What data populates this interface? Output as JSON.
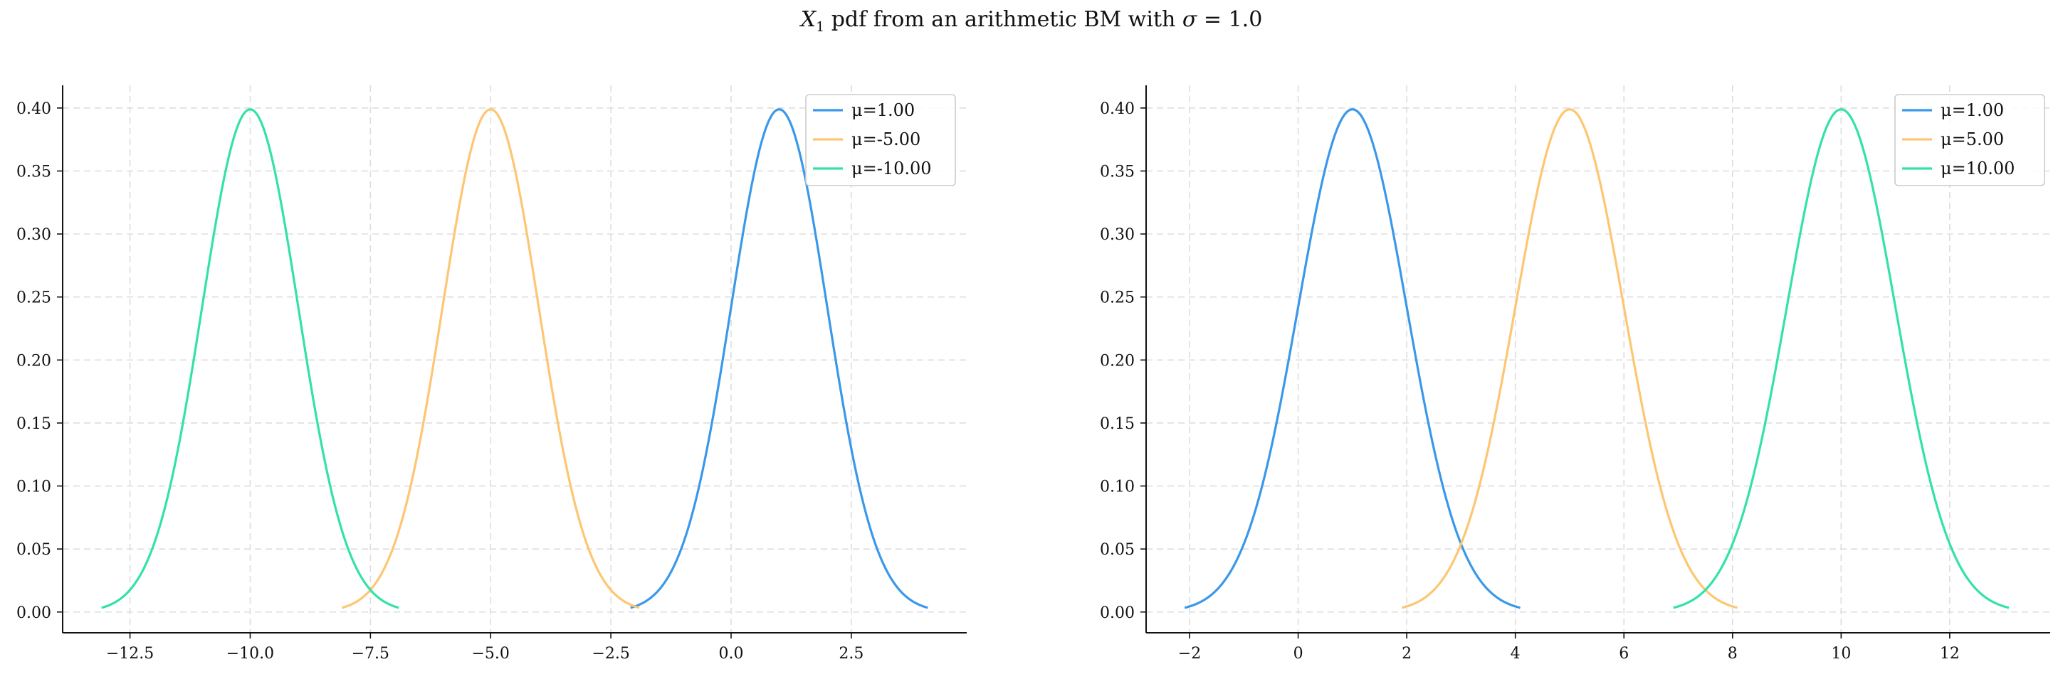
{
  "figure": {
    "title_pre": "X",
    "title_sub": "1",
    "title_mid": " pdf from an arithmetic BM with ",
    "title_sigma": "σ",
    "title_post": " = 1.0"
  },
  "colors": {
    "blue": "#3a98ea",
    "orange": "#fdc672",
    "teal": "#33e2a6",
    "grid": "#dddddd",
    "axis": "#111111"
  },
  "chart_data": [
    {
      "type": "line",
      "title": "",
      "xlabel": "",
      "ylabel": "",
      "xlim": [
        -13.9,
        4.9
      ],
      "ylim": [
        -0.0165,
        0.418
      ],
      "xticks": [
        -12.5,
        -10.0,
        -7.5,
        -5.0,
        -2.5,
        0.0,
        2.5
      ],
      "xtick_labels": [
        "−12.5",
        "−10.0",
        "−7.5",
        "−5.0",
        "−2.5",
        "0.0",
        "2.5"
      ],
      "yticks": [
        0.0,
        0.05,
        0.1,
        0.15,
        0.2,
        0.25,
        0.3,
        0.35,
        0.4
      ],
      "ytick_labels": [
        "0.00",
        "0.05",
        "0.10",
        "0.15",
        "0.20",
        "0.25",
        "0.30",
        "0.35",
        "0.40"
      ],
      "grid": true,
      "legend_position": "top-right",
      "series": [
        {
          "name": "μ=1.00",
          "mu": 1.0,
          "sigma": 1.0,
          "x_range": [
            -2.09,
            4.09
          ],
          "color": "blue",
          "x": [
            -2.09,
            -1.5,
            -1.0,
            -0.5,
            0.0,
            0.5,
            1.0,
            1.5,
            2.0,
            2.5,
            3.0,
            3.5,
            4.09
          ],
          "y": [
            0.003,
            0.018,
            0.054,
            0.13,
            0.242,
            0.352,
            0.399,
            0.352,
            0.242,
            0.13,
            0.054,
            0.018,
            0.003
          ]
        },
        {
          "name": "μ=-5.00",
          "mu": -5.0,
          "sigma": 1.0,
          "x_range": [
            -8.09,
            -1.91
          ],
          "color": "orange",
          "x": [
            -8.09,
            -7.5,
            -7.0,
            -6.5,
            -6.0,
            -5.5,
            -5.0,
            -4.5,
            -4.0,
            -3.5,
            -3.0,
            -2.5,
            -1.91
          ],
          "y": [
            0.003,
            0.018,
            0.054,
            0.13,
            0.242,
            0.352,
            0.399,
            0.352,
            0.242,
            0.13,
            0.054,
            0.018,
            0.003
          ]
        },
        {
          "name": "μ=-10.00",
          "mu": -10.0,
          "sigma": 1.0,
          "x_range": [
            -13.09,
            -6.91
          ],
          "color": "teal",
          "x": [
            -13.09,
            -12.5,
            -12.0,
            -11.5,
            -11.0,
            -10.5,
            -10.0,
            -9.5,
            -9.0,
            -8.5,
            -8.0,
            -7.5,
            -6.91
          ],
          "y": [
            0.003,
            0.018,
            0.054,
            0.13,
            0.242,
            0.352,
            0.399,
            0.352,
            0.242,
            0.13,
            0.054,
            0.018,
            0.003
          ]
        }
      ]
    },
    {
      "type": "line",
      "title": "",
      "xlabel": "",
      "ylabel": "",
      "xlim": [
        -2.8,
        13.85
      ],
      "ylim": [
        -0.0165,
        0.418
      ],
      "xticks": [
        -2,
        0,
        2,
        4,
        6,
        8,
        10,
        12
      ],
      "xtick_labels": [
        "−2",
        "0",
        "2",
        "4",
        "6",
        "8",
        "10",
        "12"
      ],
      "yticks": [
        0.0,
        0.05,
        0.1,
        0.15,
        0.2,
        0.25,
        0.3,
        0.35,
        0.4
      ],
      "ytick_labels": [
        "0.00",
        "0.05",
        "0.10",
        "0.15",
        "0.20",
        "0.25",
        "0.30",
        "0.35",
        "0.40"
      ],
      "grid": true,
      "legend_position": "top-right",
      "series": [
        {
          "name": "μ=1.00",
          "mu": 1.0,
          "sigma": 1.0,
          "x_range": [
            -2.09,
            4.09
          ],
          "color": "blue",
          "x": [
            -2.09,
            -1.5,
            -1.0,
            -0.5,
            0.0,
            0.5,
            1.0,
            1.5,
            2.0,
            2.5,
            3.0,
            3.5,
            4.09
          ],
          "y": [
            0.003,
            0.018,
            0.054,
            0.13,
            0.242,
            0.352,
            0.399,
            0.352,
            0.242,
            0.13,
            0.054,
            0.018,
            0.003
          ]
        },
        {
          "name": "μ=5.00",
          "mu": 5.0,
          "sigma": 1.0,
          "x_range": [
            1.91,
            8.09
          ],
          "color": "orange",
          "x": [
            1.91,
            2.5,
            3.0,
            3.5,
            4.0,
            4.5,
            5.0,
            5.5,
            6.0,
            6.5,
            7.0,
            7.5,
            8.09
          ],
          "y": [
            0.003,
            0.018,
            0.054,
            0.13,
            0.242,
            0.352,
            0.399,
            0.352,
            0.242,
            0.13,
            0.054,
            0.018,
            0.003
          ]
        },
        {
          "name": "μ=10.00",
          "mu": 10.0,
          "sigma": 1.0,
          "x_range": [
            6.91,
            13.09
          ],
          "color": "teal",
          "x": [
            6.91,
            7.5,
            8.0,
            8.5,
            9.0,
            9.5,
            10.0,
            10.5,
            11.0,
            11.5,
            12.0,
            12.5,
            13.09
          ],
          "y": [
            0.003,
            0.018,
            0.054,
            0.13,
            0.242,
            0.352,
            0.399,
            0.352,
            0.242,
            0.13,
            0.054,
            0.018,
            0.003
          ]
        }
      ]
    }
  ]
}
